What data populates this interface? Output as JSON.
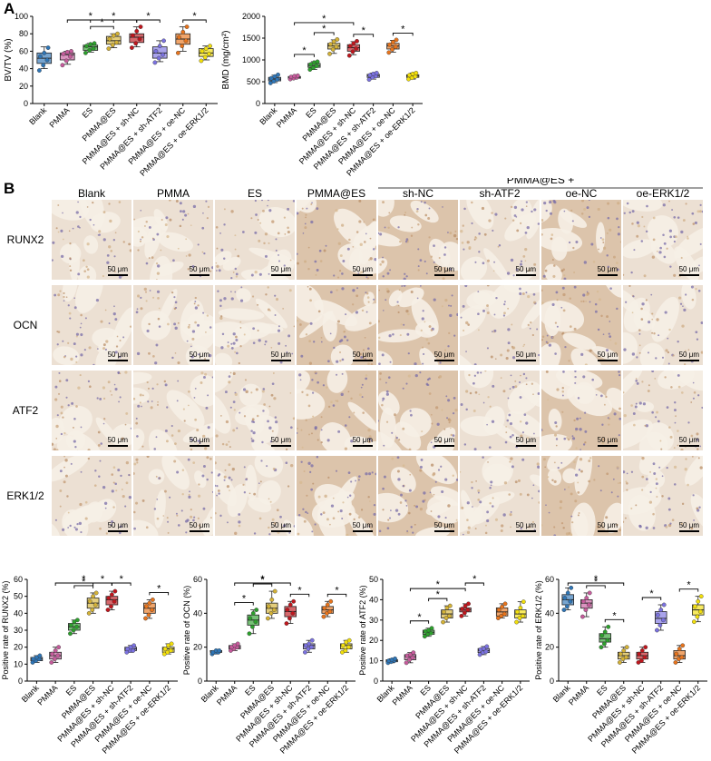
{
  "panel_labels": {
    "a": "A",
    "b": "B"
  },
  "groups": [
    "Blank",
    "PMMA",
    "ES",
    "PMMA@ES",
    "PMMA@ES + sh-NC",
    "PMMA@ES + sh-ATF2",
    "PMMA@ES + oe-NC",
    "PMMA@ES + oe-ERK1/2"
  ],
  "colors": [
    "#2e75b6",
    "#c65b9c",
    "#2ca02c",
    "#d4b236",
    "#c0161d",
    "#7b72e0",
    "#e8741c",
    "#f2df0b"
  ],
  "micrograph_grid": {
    "column_headers": [
      "Blank",
      "PMMA",
      "ES",
      "PMMA@ES",
      "sh-NC",
      "sh-ATF2",
      "oe-NC",
      "oe-ERK1/2"
    ],
    "group_header": "PMMA@ES +",
    "row_labels": [
      "RUNX2",
      "OCN",
      "ATF2",
      "ERK1/2"
    ],
    "scale_bar_label": "50 μm",
    "staining": "immunohistochemistry, brown DAB with hematoxylin counterstain"
  },
  "chart_data": [
    {
      "type": "box",
      "ylabel": "BV/TV (%)",
      "ylim": [
        0,
        100
      ],
      "yticks": [
        0,
        20,
        40,
        60,
        80,
        100
      ],
      "categories": [
        "Blank",
        "PMMA",
        "ES",
        "PMMA@ES",
        "PMMA@ES + sh-NC",
        "PMMA@ES + sh-ATF2",
        "PMMA@ES + oe-NC",
        "PMMA@ES + oe-ERK1/2"
      ],
      "boxes": [
        [
          40,
          46,
          52,
          58,
          65
        ],
        [
          45,
          50,
          56,
          58,
          60
        ],
        [
          59,
          61,
          65,
          67,
          69
        ],
        [
          64,
          68,
          72,
          77,
          80
        ],
        [
          65,
          70,
          76,
          80,
          88
        ],
        [
          48,
          52,
          58,
          65,
          72
        ],
        [
          60,
          68,
          74,
          80,
          88
        ],
        [
          50,
          54,
          58,
          63,
          66
        ]
      ],
      "points": [
        [
          38,
          44,
          50,
          54,
          58,
          64
        ],
        [
          44,
          49,
          54,
          57,
          59,
          60
        ],
        [
          58,
          61,
          63,
          66,
          68,
          69
        ],
        [
          63,
          67,
          70,
          74,
          78,
          80
        ],
        [
          64,
          69,
          74,
          78,
          83,
          88
        ],
        [
          47,
          52,
          56,
          60,
          66,
          72
        ],
        [
          58,
          66,
          72,
          76,
          82,
          88
        ],
        [
          49,
          53,
          57,
          60,
          63,
          66
        ]
      ],
      "significance": [
        {
          "from": 2,
          "to": 3,
          "label": "*"
        },
        {
          "from": 1,
          "to": 3,
          "label": "*"
        },
        {
          "from": 2,
          "to": 4,
          "label": "*"
        },
        {
          "from": 4,
          "to": 5,
          "label": "*"
        },
        {
          "from": 6,
          "to": 7,
          "label": "*"
        }
      ]
    },
    {
      "type": "box",
      "ylabel": "BMD (mg/cm²)",
      "ylim": [
        0,
        2000
      ],
      "yticks": [
        0,
        500,
        1000,
        1500,
        2000
      ],
      "categories": [
        "Blank",
        "PMMA",
        "ES",
        "PMMA@ES",
        "PMMA@ES + sh-NC",
        "PMMA@ES + sh-ATF2",
        "PMMA@ES + oe-NC",
        "PMMA@ES + oe-ERK1/2"
      ],
      "boxes": [
        [
          480,
          520,
          560,
          600,
          650
        ],
        [
          560,
          580,
          600,
          620,
          640
        ],
        [
          780,
          830,
          870,
          920,
          960
        ],
        [
          1150,
          1250,
          1320,
          1380,
          1460
        ],
        [
          1120,
          1200,
          1280,
          1350,
          1420
        ],
        [
          560,
          600,
          640,
          670,
          700
        ],
        [
          1180,
          1250,
          1320,
          1380,
          1450
        ],
        [
          560,
          600,
          630,
          660,
          700
        ]
      ],
      "points": [
        [
          470,
          510,
          550,
          580,
          620,
          660
        ],
        [
          560,
          580,
          600,
          610,
          630,
          640
        ],
        [
          780,
          820,
          860,
          900,
          940,
          960
        ],
        [
          1140,
          1240,
          1300,
          1360,
          1420,
          1470
        ],
        [
          1100,
          1190,
          1260,
          1320,
          1380,
          1430
        ],
        [
          550,
          600,
          630,
          650,
          680,
          700
        ],
        [
          1170,
          1240,
          1300,
          1350,
          1410,
          1460
        ],
        [
          560,
          590,
          620,
          650,
          680,
          700
        ]
      ],
      "significance": [
        {
          "from": 1,
          "to": 2,
          "label": "*"
        },
        {
          "from": 2,
          "to": 3,
          "label": "*"
        },
        {
          "from": 1,
          "to": 4,
          "label": "*"
        },
        {
          "from": 4,
          "to": 5,
          "label": "*"
        },
        {
          "from": 6,
          "to": 7,
          "label": "*"
        }
      ]
    },
    {
      "type": "box",
      "ylabel": "Positive rate of RUNX2 (%)",
      "ylim": [
        0,
        60
      ],
      "yticks": [
        0,
        10,
        20,
        30,
        40,
        50,
        60
      ],
      "categories": [
        "Blank",
        "PMMA",
        "ES",
        "PMMA@ES",
        "PMMA@ES + sh-NC",
        "PMMA@ES + sh-ATF2",
        "PMMA@ES + oe-NC",
        "PMMA@ES + oe-ERK1/2"
      ],
      "boxes": [
        [
          11,
          12,
          13,
          14,
          15
        ],
        [
          11,
          13,
          15,
          17,
          20
        ],
        [
          28,
          30,
          32,
          34,
          36
        ],
        [
          40,
          43,
          46,
          49,
          52
        ],
        [
          42,
          45,
          48,
          50,
          53
        ],
        [
          17,
          18,
          19,
          20,
          21
        ],
        [
          37,
          40,
          43,
          46,
          48
        ],
        [
          16,
          17,
          19,
          20,
          22
        ]
      ],
      "points": [
        [
          11,
          12,
          13,
          13,
          14,
          15
        ],
        [
          11,
          13,
          15,
          16,
          18,
          20
        ],
        [
          28,
          30,
          32,
          33,
          35,
          36
        ],
        [
          40,
          42,
          45,
          47,
          50,
          52
        ],
        [
          42,
          44,
          47,
          49,
          51,
          53
        ],
        [
          17,
          18,
          18,
          19,
          20,
          21
        ],
        [
          37,
          39,
          42,
          44,
          46,
          48
        ],
        [
          16,
          17,
          18,
          19,
          21,
          22
        ]
      ],
      "significance": [
        {
          "from": 2,
          "to": 3,
          "label": "*"
        },
        {
          "from": 3,
          "to": 4,
          "label": "*"
        },
        {
          "from": 1,
          "to": 4,
          "label": "*"
        },
        {
          "from": 4,
          "to": 5,
          "label": "*"
        },
        {
          "from": 6,
          "to": 7,
          "label": "*"
        }
      ]
    },
    {
      "type": "box",
      "ylabel": "Positive rate of OCN (%)",
      "ylim": [
        0,
        60
      ],
      "yticks": [
        0,
        20,
        40,
        60
      ],
      "categories": [
        "Blank",
        "PMMA",
        "ES",
        "PMMA@ES",
        "PMMA@ES + sh-NC",
        "PMMA@ES + sh-ATF2",
        "PMMA@ES + oe-NC",
        "PMMA@ES + oe-ERK1/2"
      ],
      "boxes": [
        [
          16,
          17,
          17,
          18,
          18
        ],
        [
          18,
          19,
          20,
          21,
          22
        ],
        [
          28,
          33,
          36,
          39,
          42
        ],
        [
          37,
          40,
          43,
          46,
          53
        ],
        [
          34,
          38,
          41,
          44,
          47
        ],
        [
          17,
          19,
          21,
          22,
          24
        ],
        [
          38,
          40,
          42,
          44,
          47
        ],
        [
          17,
          19,
          21,
          22,
          24
        ]
      ],
      "points": [
        [
          16,
          17,
          17,
          17,
          18,
          18
        ],
        [
          18,
          19,
          20,
          20,
          21,
          22
        ],
        [
          28,
          32,
          35,
          37,
          40,
          42
        ],
        [
          37,
          40,
          42,
          44,
          48,
          53
        ],
        [
          34,
          37,
          40,
          42,
          45,
          47
        ],
        [
          17,
          19,
          20,
          21,
          22,
          24
        ],
        [
          38,
          40,
          41,
          43,
          45,
          47
        ],
        [
          17,
          18,
          20,
          21,
          23,
          24
        ]
      ],
      "significance": [
        {
          "from": 1,
          "to": 2,
          "label": "*"
        },
        {
          "from": 2,
          "to": 3,
          "label": "*"
        },
        {
          "from": 1,
          "to": 4,
          "label": "*"
        },
        {
          "from": 4,
          "to": 5,
          "label": "*"
        },
        {
          "from": 6,
          "to": 7,
          "label": "*"
        }
      ]
    },
    {
      "type": "box",
      "ylabel": "Positive rate of ATF2 (%)",
      "ylim": [
        0,
        50
      ],
      "yticks": [
        0,
        10,
        20,
        30,
        40,
        50
      ],
      "categories": [
        "Blank",
        "PMMA",
        "ES",
        "PMMA@ES",
        "PMMA@ES + sh-NC",
        "PMMA@ES + sh-ATF2",
        "PMMA@ES + oe-NC",
        "PMMA@ES + oe-ERK1/2"
      ],
      "boxes": [
        [
          9,
          9.5,
          10,
          10.5,
          11
        ],
        [
          9,
          10.5,
          12,
          13,
          14
        ],
        [
          22,
          23,
          24,
          25,
          26
        ],
        [
          29,
          31,
          33,
          35,
          37
        ],
        [
          32,
          34,
          35,
          36,
          38
        ],
        [
          13,
          14,
          15,
          16,
          17
        ],
        [
          31,
          32,
          34,
          36,
          38
        ],
        [
          29,
          31,
          33,
          35,
          39
        ]
      ],
      "points": [
        [
          9,
          9.5,
          10,
          10,
          10.5,
          11
        ],
        [
          9,
          10.5,
          11.5,
          12.5,
          13,
          14
        ],
        [
          22,
          23,
          23.5,
          24.5,
          25,
          26
        ],
        [
          29,
          31,
          32,
          34,
          36,
          37
        ],
        [
          32,
          33.5,
          35,
          35.5,
          37,
          38
        ],
        [
          13,
          14,
          14.5,
          15.5,
          16,
          17
        ],
        [
          31,
          32,
          33,
          35,
          36.5,
          38
        ],
        [
          29,
          31,
          32,
          34,
          36,
          39
        ]
      ],
      "significance": [
        {
          "from": 1,
          "to": 2,
          "label": "*"
        },
        {
          "from": 2,
          "to": 3,
          "label": "*"
        },
        {
          "from": 1,
          "to": 4,
          "label": "*"
        },
        {
          "from": 4,
          "to": 5,
          "label": "*"
        }
      ]
    },
    {
      "type": "box",
      "ylabel": "Positive rate of ERK1/2 (%)",
      "ylim": [
        0,
        60
      ],
      "yticks": [
        0,
        20,
        40,
        60
      ],
      "categories": [
        "Blank",
        "PMMA",
        "ES",
        "PMMA@ES",
        "PMMA@ES + sh-NC",
        "PMMA@ES + sh-ATF2",
        "PMMA@ES + oe-NC",
        "PMMA@ES + oe-ERK1/2"
      ],
      "boxes": [
        [
          42,
          45,
          48,
          51,
          55
        ],
        [
          38,
          43,
          46,
          48,
          52
        ],
        [
          20,
          23,
          25,
          28,
          32
        ],
        [
          11,
          13,
          15,
          17,
          20
        ],
        [
          11,
          13,
          15,
          17,
          20
        ],
        [
          30,
          34,
          37,
          41,
          45
        ],
        [
          11,
          13,
          15,
          18,
          21
        ],
        [
          35,
          39,
          42,
          45,
          50
        ]
      ],
      "points": [
        [
          42,
          44,
          47,
          49,
          52,
          55
        ],
        [
          38,
          42,
          45,
          47,
          49,
          52
        ],
        [
          20,
          22,
          24,
          27,
          29,
          32
        ],
        [
          11,
          13,
          14,
          16,
          18,
          20
        ],
        [
          11,
          12,
          14,
          16,
          18,
          20
        ],
        [
          30,
          33,
          36,
          39,
          42,
          45
        ],
        [
          11,
          13,
          14,
          16,
          19,
          21
        ],
        [
          35,
          38,
          41,
          44,
          47,
          50
        ]
      ],
      "significance": [
        {
          "from": 1,
          "to": 2,
          "label": "*"
        },
        {
          "from": 0,
          "to": 3,
          "label": "*"
        },
        {
          "from": 2,
          "to": 3,
          "label": "*"
        },
        {
          "from": 4,
          "to": 5,
          "label": "*"
        },
        {
          "from": 6,
          "to": 7,
          "label": "*"
        }
      ]
    }
  ]
}
